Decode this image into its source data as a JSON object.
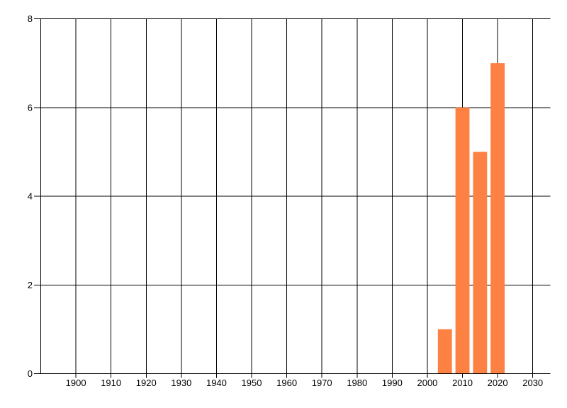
{
  "chart_data": {
    "type": "bar",
    "title": "",
    "xlabel": "",
    "ylabel": "",
    "categories": [
      2005,
      2010,
      2015,
      2020
    ],
    "values": [
      1,
      6,
      5,
      7
    ],
    "bar_width_years": 4,
    "xlim": [
      1890,
      2035
    ],
    "ylim": [
      0,
      8
    ],
    "x_ticks": [
      "1900",
      "1910",
      "1920",
      "1930",
      "1940",
      "1950",
      "1960",
      "1970",
      "1980",
      "1990",
      "2000",
      "2010",
      "2020",
      "2030"
    ],
    "y_ticks": [
      "0",
      "2",
      "4",
      "6",
      "8"
    ],
    "grid": true,
    "legend_position": "none",
    "colors": {
      "bar": "#fc8142",
      "grid": "#000000",
      "axis": "#000000",
      "text": "#000000",
      "background": "#ffffff"
    }
  }
}
